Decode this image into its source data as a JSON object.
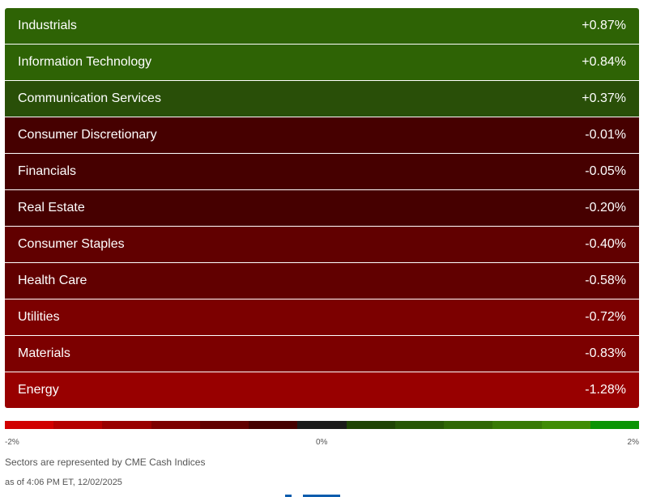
{
  "sectors": [
    {
      "name": "Industrials",
      "change": "+0.87%",
      "color": "#2e6305"
    },
    {
      "name": "Information Technology",
      "change": "+0.84%",
      "color": "#2e6305"
    },
    {
      "name": "Communication Services",
      "change": "+0.37%",
      "color": "#294f08"
    },
    {
      "name": "Consumer Discretionary",
      "change": "-0.01%",
      "color": "#460000"
    },
    {
      "name": "Financials",
      "change": "-0.05%",
      "color": "#460000"
    },
    {
      "name": "Real Estate",
      "change": "-0.20%",
      "color": "#460000"
    },
    {
      "name": "Consumer Staples",
      "change": "-0.40%",
      "color": "#610000"
    },
    {
      "name": "Health Care",
      "change": "-0.58%",
      "color": "#610000"
    },
    {
      "name": "Utilities",
      "change": "-0.72%",
      "color": "#7c0000"
    },
    {
      "name": "Materials",
      "change": "-0.83%",
      "color": "#7c0000"
    },
    {
      "name": "Energy",
      "change": "-1.28%",
      "color": "#980000"
    }
  ],
  "scale": {
    "colors": [
      "#d10000",
      "#b50000",
      "#990000",
      "#7d0000",
      "#610000",
      "#450000",
      "#1a1a1a",
      "#1f4405",
      "#275606",
      "#306806",
      "#387a06",
      "#408c05",
      "#0a9405"
    ],
    "min_label": "-2%",
    "mid_label": "0%",
    "max_label": "2%"
  },
  "footer": {
    "source_note": "Sectors are represented by CME Cash Indices",
    "timestamp": "as of 4:06 PM ET, 12/02/2025"
  }
}
